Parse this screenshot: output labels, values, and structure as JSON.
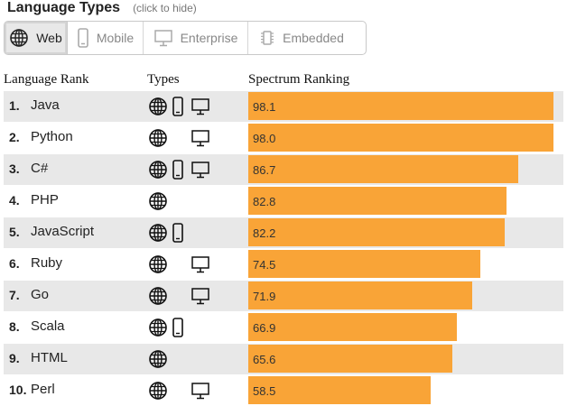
{
  "header": {
    "title": "Language Types",
    "hint": "(click to hide)"
  },
  "filters": [
    {
      "label": "Web",
      "icon": "globe-icon",
      "active": true
    },
    {
      "label": "Mobile",
      "icon": "phone-icon",
      "active": false
    },
    {
      "label": "Enterprise",
      "icon": "monitor-icon",
      "active": false
    },
    {
      "label": "Embedded",
      "icon": "chip-icon",
      "active": false
    }
  ],
  "columns": {
    "rank": "Language Rank",
    "types": "Types",
    "ranking": "Spectrum Ranking"
  },
  "colors": {
    "bar": "#f9a437",
    "row_shade": "#e8e8e8"
  },
  "ranking_max": 100,
  "languages": [
    {
      "rank": "1.",
      "name": "Java",
      "web": true,
      "mobile": true,
      "enterprise": true,
      "score": 98.1,
      "score_label": "98.1"
    },
    {
      "rank": "2.",
      "name": "Python",
      "web": true,
      "mobile": false,
      "enterprise": true,
      "score": 98.0,
      "score_label": "98.0"
    },
    {
      "rank": "3.",
      "name": "C#",
      "web": true,
      "mobile": true,
      "enterprise": true,
      "score": 86.7,
      "score_label": "86.7"
    },
    {
      "rank": "4.",
      "name": "PHP",
      "web": true,
      "mobile": false,
      "enterprise": false,
      "score": 82.8,
      "score_label": "82.8"
    },
    {
      "rank": "5.",
      "name": "JavaScript",
      "web": true,
      "mobile": true,
      "enterprise": false,
      "score": 82.2,
      "score_label": "82.2"
    },
    {
      "rank": "6.",
      "name": "Ruby",
      "web": true,
      "mobile": false,
      "enterprise": true,
      "score": 74.5,
      "score_label": "74.5"
    },
    {
      "rank": "7.",
      "name": "Go",
      "web": true,
      "mobile": false,
      "enterprise": true,
      "score": 71.9,
      "score_label": "71.9"
    },
    {
      "rank": "8.",
      "name": "Scala",
      "web": true,
      "mobile": true,
      "enterprise": false,
      "score": 66.9,
      "score_label": "66.9"
    },
    {
      "rank": "9.",
      "name": "HTML",
      "web": true,
      "mobile": false,
      "enterprise": false,
      "score": 65.6,
      "score_label": "65.6"
    },
    {
      "rank": "10.",
      "name": "Perl",
      "web": true,
      "mobile": false,
      "enterprise": true,
      "score": 58.5,
      "score_label": "58.5"
    }
  ]
}
